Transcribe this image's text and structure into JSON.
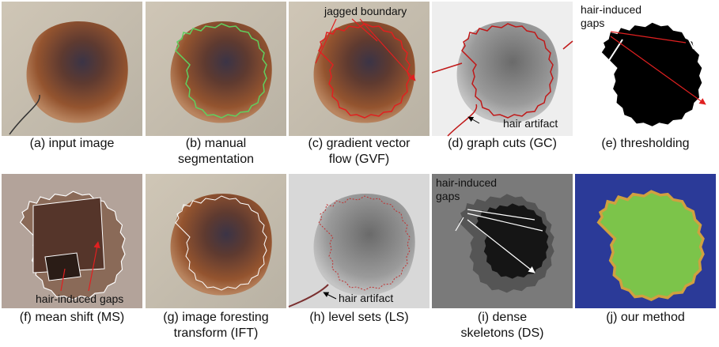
{
  "panels": [
    {
      "caption": [
        "(a) input image"
      ]
    },
    {
      "caption": [
        "(b) manual",
        "segmentation"
      ]
    },
    {
      "caption": [
        "(c) gradient vector",
        "flow (GVF)"
      ],
      "annotation": [
        "jagged boundary"
      ]
    },
    {
      "caption": [
        "(d) graph cuts (GC)"
      ],
      "annotation": [
        "hair artifact"
      ]
    },
    {
      "caption": [
        "(e) thresholding"
      ],
      "annotation": [
        "hair-induced",
        "gaps"
      ]
    },
    {
      "caption": [
        "(f) mean shift (MS)"
      ],
      "annotation": [
        "hair-induced gaps"
      ]
    },
    {
      "caption": [
        "(g) image foresting",
        "transform (IFT)"
      ]
    },
    {
      "caption": [
        "(h) level sets (LS)"
      ],
      "annotation": [
        "hair artifact"
      ]
    },
    {
      "caption": [
        "(i) dense",
        "skeletons (DS)"
      ],
      "annotation": [
        "hair-induced",
        "gaps"
      ]
    },
    {
      "caption": [
        "(j) our method"
      ]
    }
  ]
}
